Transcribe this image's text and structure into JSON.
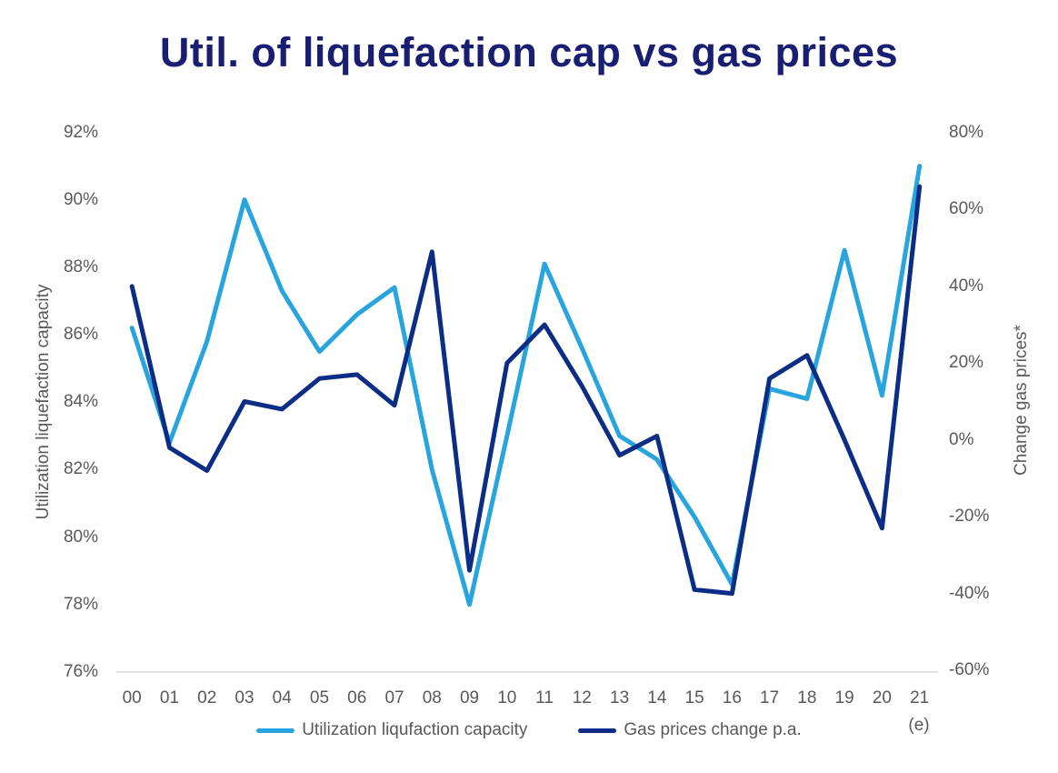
{
  "title": "Util. of liquefaction cap vs gas prices",
  "title_color": "#191E73",
  "text_color": "#595959",
  "left_axis": {
    "title": "Utilization liquefaction capacity",
    "ticks": [
      "92%",
      "90%",
      "88%",
      "86%",
      "84%",
      "82%",
      "80%",
      "78%",
      "76%"
    ]
  },
  "right_axis": {
    "title": "Change gas prices*",
    "ticks": [
      "80%",
      "60%",
      "40%",
      "20%",
      "0%",
      "-20%",
      "-40%",
      "-60%"
    ]
  },
  "x_axis": {
    "labels": [
      "00",
      "01",
      "02",
      "03",
      "04",
      "05",
      "06",
      "07",
      "08",
      "09",
      "10",
      "11",
      "12",
      "13",
      "14",
      "15",
      "16",
      "17",
      "18",
      "19",
      "20",
      "21"
    ],
    "suffix_label": "(e)"
  },
  "legend": [
    {
      "label": "Utilization liqufaction capacity",
      "color": "#28A4DE"
    },
    {
      "label": "Gas prices change p.a.",
      "color": "#0B2D85"
    }
  ],
  "chart_data": {
    "type": "line",
    "title": "Util. of liquefaction cap vs gas prices",
    "x": [
      "00",
      "01",
      "02",
      "03",
      "04",
      "05",
      "06",
      "07",
      "08",
      "09",
      "10",
      "11",
      "12",
      "13",
      "14",
      "15",
      "16",
      "17",
      "18",
      "19",
      "20",
      "21"
    ],
    "x_note": "21 is estimated (e)",
    "series": [
      {
        "name": "Utilization liqufaction capacity",
        "axis": "left",
        "color": "#28A4DE",
        "unit": "%",
        "values": [
          86.2,
          82.8,
          85.8,
          90.0,
          87.3,
          85.5,
          86.6,
          87.4,
          82.0,
          78.0,
          83.0,
          88.1,
          85.6,
          83.0,
          82.3,
          80.6,
          78.6,
          84.4,
          84.1,
          88.5,
          84.2,
          91.0
        ]
      },
      {
        "name": "Gas prices change p.a.",
        "axis": "right",
        "color": "#0B2D85",
        "unit": "%",
        "values": [
          40,
          -2,
          -8,
          10,
          8,
          16,
          17,
          9,
          49,
          -34,
          20,
          30,
          14,
          -4,
          1,
          -39,
          -40,
          16,
          22,
          0,
          -23,
          66
        ]
      }
    ],
    "left_ylabel": "Utilization liquefaction capacity",
    "right_ylabel": "Change gas prices*",
    "left_ylim": [
      76,
      92
    ],
    "right_ylim": [
      -60,
      80
    ],
    "grid": false,
    "legend_position": "bottom"
  }
}
